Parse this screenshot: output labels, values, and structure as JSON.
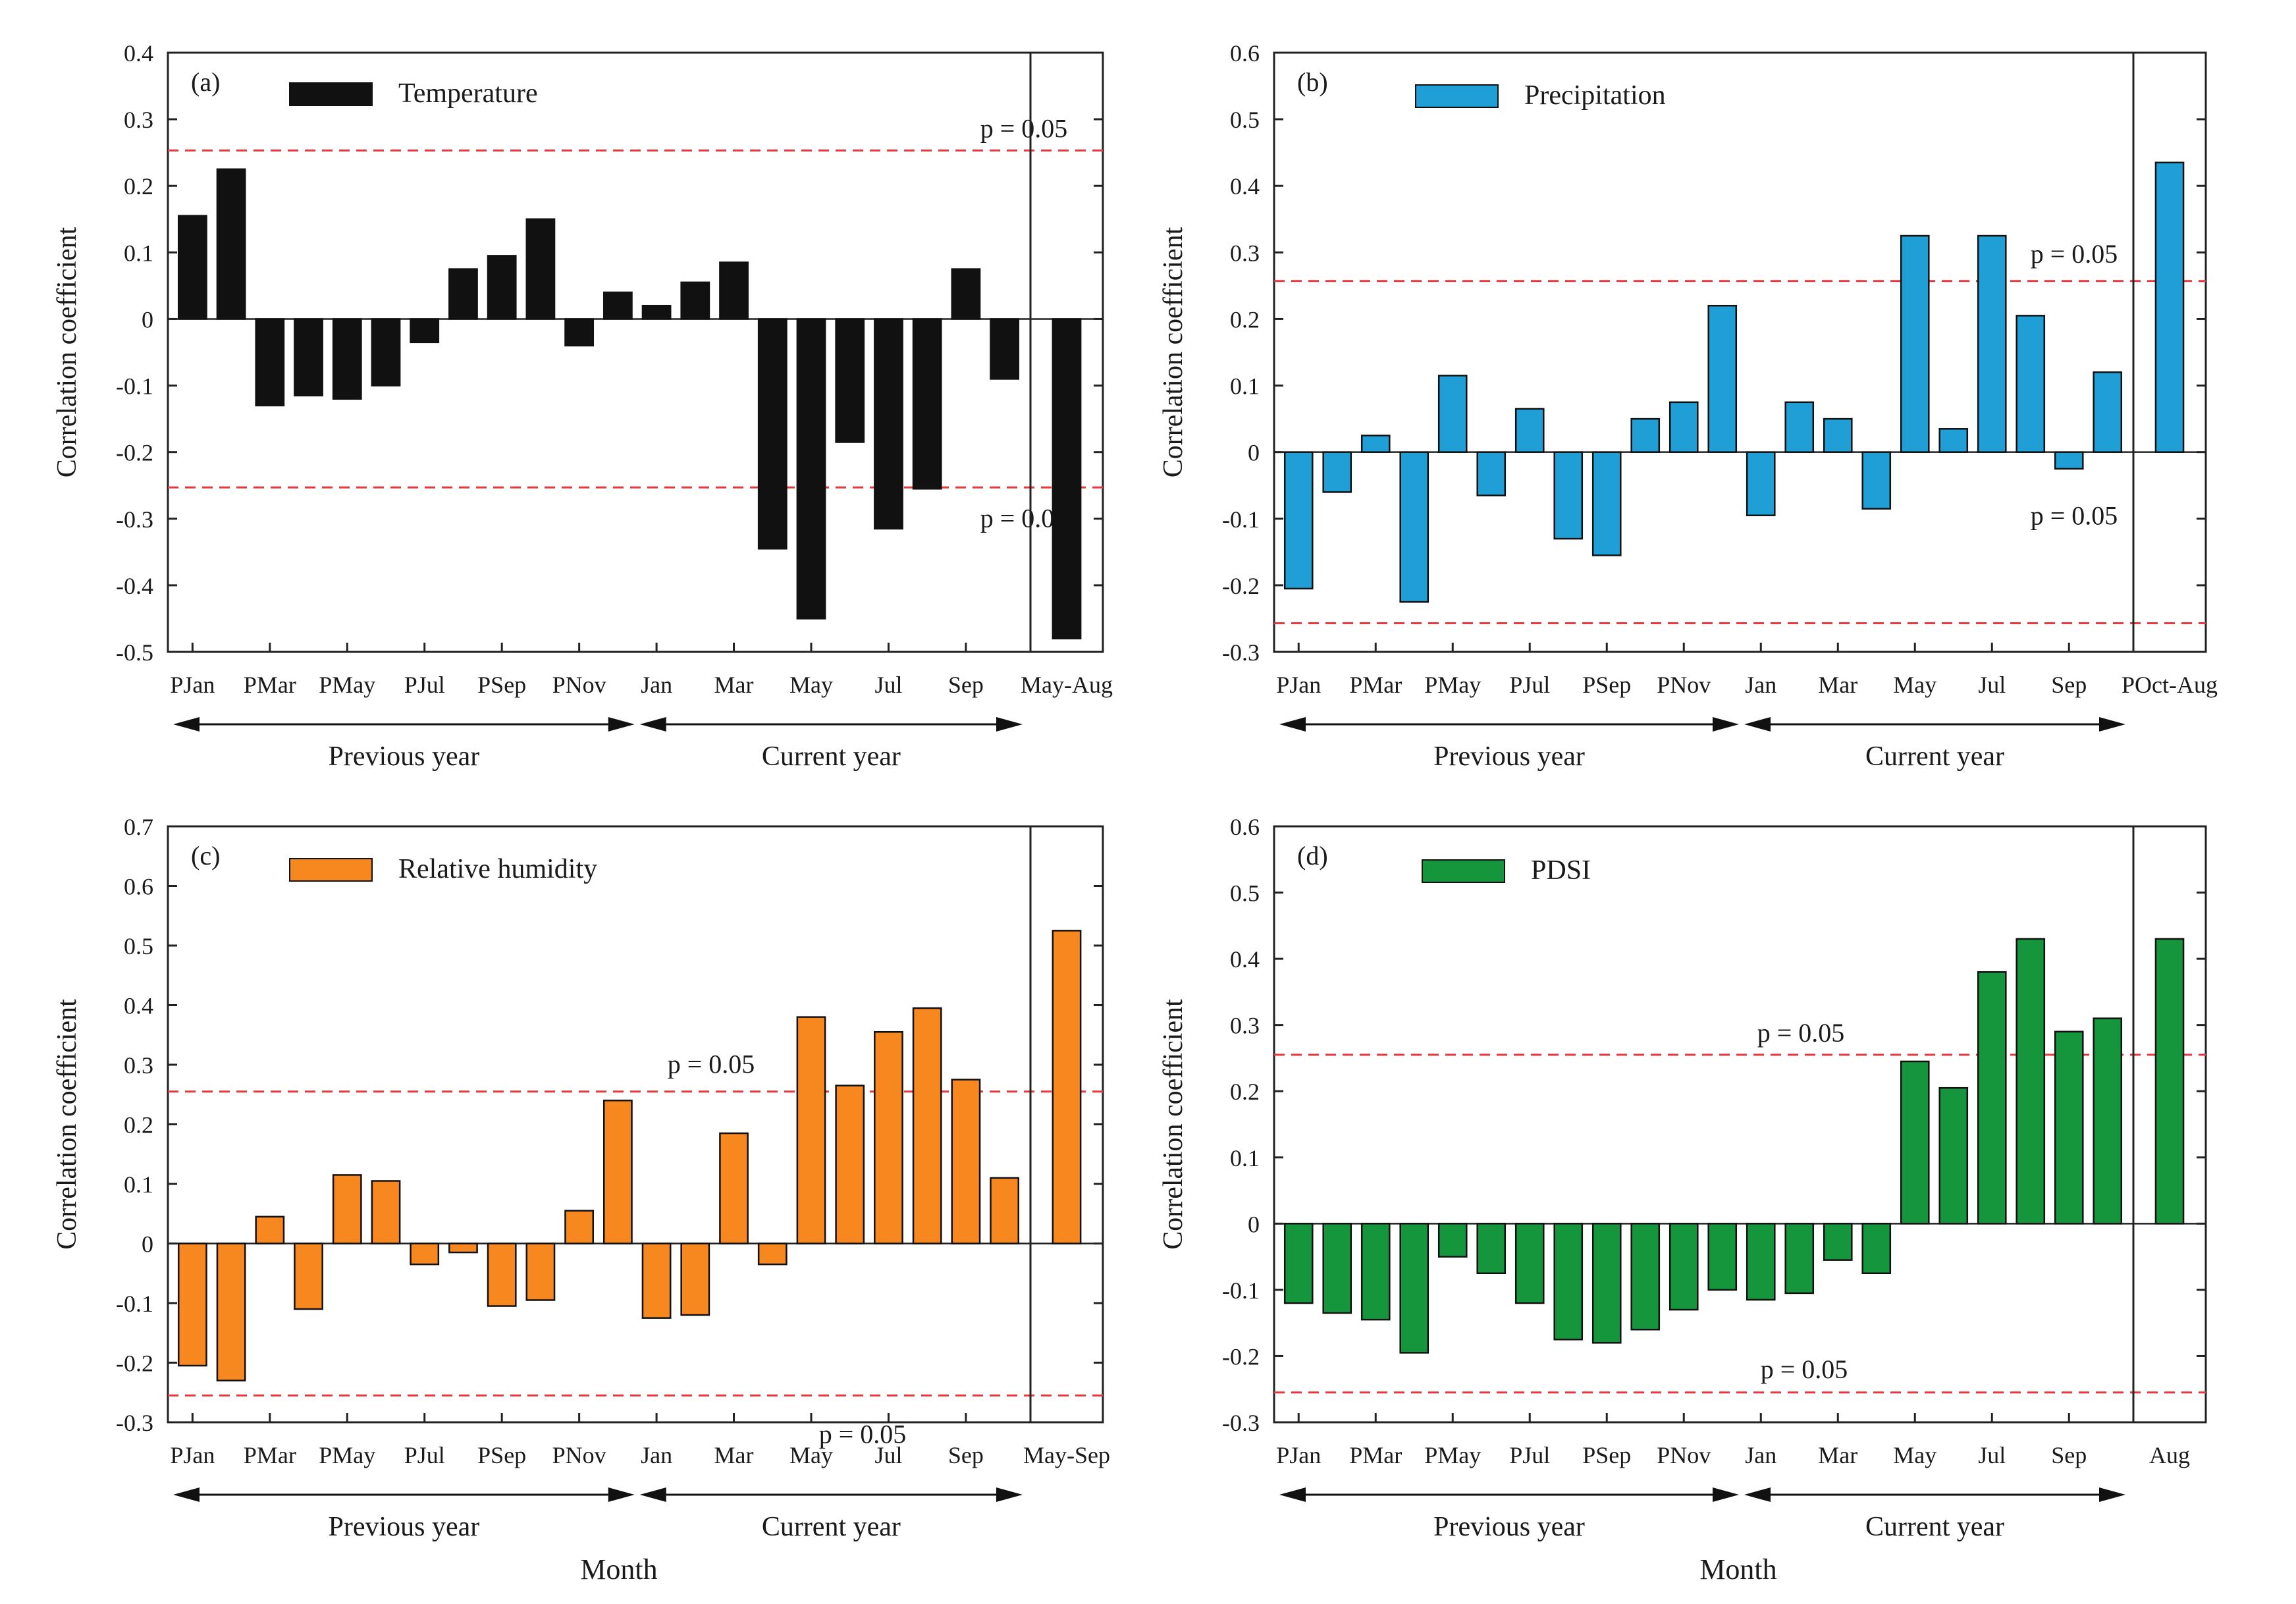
{
  "figure": {
    "x_axis_title": "Month",
    "y_axis_title": "Correlation coefficient",
    "previous_year_label": "Previous year",
    "current_year_label": "Current year",
    "significance_label": "p = 0.05"
  },
  "chart_data": [
    {
      "type": "bar",
      "panel": "(a)",
      "legend": "Temperature",
      "color": "#111111",
      "ylim": [
        -0.5,
        0.4
      ],
      "yticks": [
        0.4,
        0.3,
        0.2,
        0.1,
        0,
        -0.1,
        -0.2,
        -0.3,
        -0.4,
        -0.5
      ],
      "significance": 0.253,
      "significance_labels": [
        "top",
        "bottom"
      ],
      "season_label": "May-Aug",
      "season_value": -0.48,
      "tick_labels": [
        "PJan",
        "PMar",
        "PMay",
        "PJul",
        "PSep",
        "PNov",
        "Jan",
        "Mar",
        "May",
        "Jul",
        "Sep"
      ],
      "categories": [
        "PJan",
        "PFeb",
        "PMar",
        "PApr",
        "PMay",
        "PJun",
        "PJul",
        "PAug",
        "PSep",
        "POct",
        "PNov",
        "PDec",
        "Jan",
        "Feb",
        "Mar",
        "Apr",
        "May",
        "Jun",
        "Jul",
        "Aug",
        "Sep",
        "Oct"
      ],
      "values": [
        0.155,
        0.225,
        -0.13,
        -0.115,
        -0.12,
        -0.1,
        -0.035,
        0.075,
        0.095,
        0.15,
        -0.04,
        0.04,
        0.02,
        0.055,
        0.085,
        -0.345,
        -0.45,
        -0.185,
        -0.315,
        -0.255,
        0.075,
        -0.09
      ]
    },
    {
      "type": "bar",
      "panel": "(b)",
      "legend": "Precipitation",
      "color": "#1f9fd6",
      "ylim": [
        -0.3,
        0.6
      ],
      "yticks": [
        0.6,
        0.5,
        0.4,
        0.3,
        0.2,
        0.1,
        0,
        -0.1,
        -0.2,
        -0.3
      ],
      "significance": 0.257,
      "significance_labels": [
        "top",
        "bottom"
      ],
      "season_label": "POct-Aug",
      "season_value": 0.435,
      "tick_labels": [
        "PJan",
        "PMar",
        "PMay",
        "PJul",
        "PSep",
        "PNov",
        "Jan",
        "Mar",
        "May",
        "Jul",
        "Sep"
      ],
      "categories": [
        "PJan",
        "PFeb",
        "PMar",
        "PApr",
        "PMay",
        "PJun",
        "PJul",
        "PAug",
        "PSep",
        "POct",
        "PNov",
        "PDec",
        "Jan",
        "Feb",
        "Mar",
        "Apr",
        "May",
        "Jun",
        "Jul",
        "Aug",
        "Sep",
        "Oct"
      ],
      "values": [
        -0.205,
        -0.06,
        0.025,
        -0.225,
        0.115,
        -0.065,
        0.065,
        -0.13,
        -0.155,
        0.05,
        0.075,
        0.22,
        -0.095,
        0.075,
        0.05,
        -0.085,
        0.325,
        0.035,
        0.325,
        0.205,
        -0.025,
        0.12
      ]
    },
    {
      "type": "bar",
      "panel": "(c)",
      "legend": "Relative humidity",
      "color": "#f7871f",
      "ylim": [
        -0.3,
        0.7
      ],
      "yticks": [
        0.7,
        0.6,
        0.5,
        0.4,
        0.3,
        0.2,
        0.1,
        0,
        -0.1,
        -0.2,
        -0.3
      ],
      "significance": 0.255,
      "significance_labels": [
        "top",
        "bottom"
      ],
      "season_label": "May-Sep",
      "season_value": 0.525,
      "tick_labels": [
        "PJan",
        "PMar",
        "PMay",
        "PJul",
        "PSep",
        "PNov",
        "Jan",
        "Mar",
        "May",
        "Jul",
        "Sep"
      ],
      "categories": [
        "PJan",
        "PFeb",
        "PMar",
        "PApr",
        "PMay",
        "PJun",
        "PJul",
        "PAug",
        "PSep",
        "POct",
        "PNov",
        "PDec",
        "Jan",
        "Feb",
        "Mar",
        "Apr",
        "May",
        "Jun",
        "Jul",
        "Aug",
        "Sep",
        "Oct"
      ],
      "values": [
        -0.205,
        -0.23,
        0.045,
        -0.11,
        0.115,
        0.105,
        -0.035,
        -0.015,
        -0.105,
        -0.095,
        0.055,
        0.24,
        -0.125,
        -0.12,
        0.185,
        -0.035,
        0.38,
        0.265,
        0.355,
        0.395,
        0.275,
        0.11
      ]
    },
    {
      "type": "bar",
      "panel": "(d)",
      "legend": "PDSI",
      "color": "#15963d",
      "ylim": [
        -0.3,
        0.6
      ],
      "yticks": [
        0.6,
        0.5,
        0.4,
        0.3,
        0.2,
        0.1,
        0,
        -0.1,
        -0.2,
        -0.3
      ],
      "significance": 0.255,
      "significance_labels": [
        "top",
        "bottom"
      ],
      "season_label": "Aug",
      "season_value": 0.43,
      "tick_labels": [
        "PJan",
        "PMar",
        "PMay",
        "PJul",
        "PSep",
        "PNov",
        "Jan",
        "Mar",
        "May",
        "Jul",
        "Sep"
      ],
      "categories": [
        "PJan",
        "PFeb",
        "PMar",
        "PApr",
        "PMay",
        "PJun",
        "PJul",
        "PAug",
        "PSep",
        "POct",
        "PNov",
        "PDec",
        "Jan",
        "Feb",
        "Mar",
        "Apr",
        "May",
        "Jun",
        "Jul",
        "Aug",
        "Sep",
        "Oct"
      ],
      "values": [
        -0.12,
        -0.135,
        -0.145,
        -0.195,
        -0.05,
        -0.075,
        -0.12,
        -0.175,
        -0.18,
        -0.16,
        -0.13,
        -0.1,
        -0.115,
        -0.105,
        -0.055,
        -0.075,
        0.245,
        0.205,
        0.38,
        0.43,
        0.29,
        0.31
      ]
    }
  ]
}
